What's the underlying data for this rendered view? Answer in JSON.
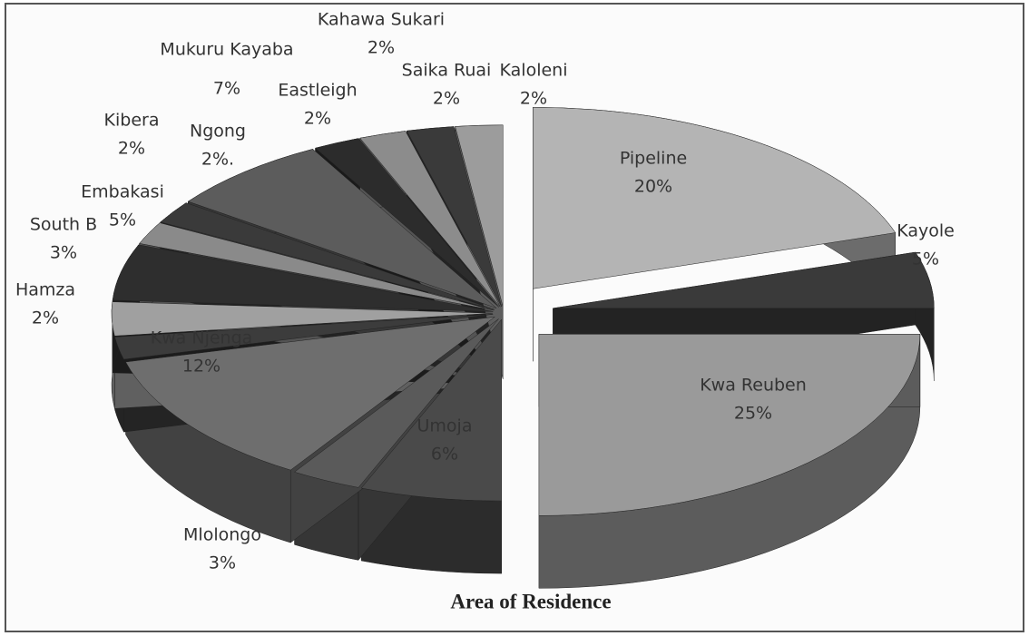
{
  "chart_data": {
    "type": "pie",
    "title": "Area of Residence",
    "categories": [
      "Pipeline",
      "Kayole",
      "Kwa Reuben",
      "Umoja",
      "Mlolongo",
      "Kwa Njenga",
      "Hamza",
      "South B",
      "Embakasi",
      "Kibera",
      "Ngong",
      "Mukuru Kayaba",
      "Eastleigh",
      "Kahawa Sukari",
      "Saika Ruai",
      "Kaloleni"
    ],
    "values": [
      20,
      5,
      25,
      6,
      3,
      12,
      2,
      3,
      5,
      2,
      2,
      7,
      2,
      2,
      2,
      2
    ],
    "value_labels": [
      "20%",
      "5%",
      "25%",
      "6%",
      "3%",
      "12%",
      "2%",
      "3%",
      "5%",
      "2%",
      "2%.",
      "7%",
      "2%",
      "2%",
      "2%",
      "2%"
    ],
    "colors": [
      "#b4b4b4",
      "#3a3a3a",
      "#9a9a9a",
      "#4a4a4a",
      "#5a5a5a",
      "#6e6e6e",
      "#3c3c3c",
      "#a0a0a0",
      "#2e2e2e",
      "#8a8a8a",
      "#3a3a3a",
      "#5c5c5c",
      "#2c2c2c",
      "#8c8c8c",
      "#3a3a3a",
      "#9c9c9c"
    ]
  }
}
